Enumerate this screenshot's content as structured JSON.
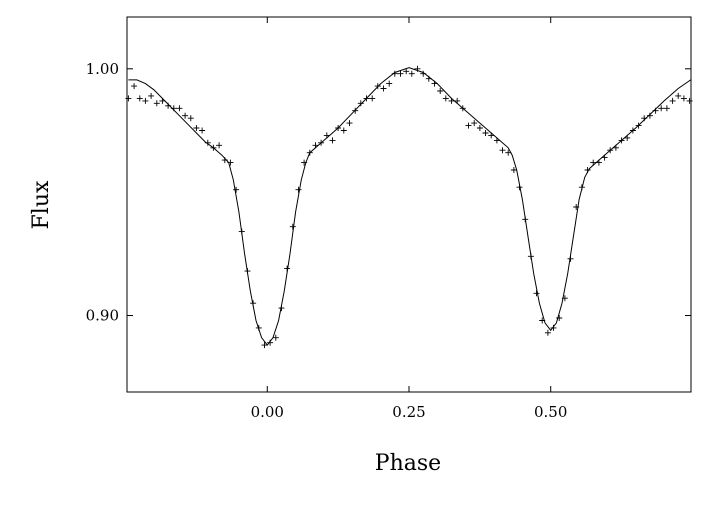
{
  "chart_data": {
    "type": "scatter",
    "xlabel": "Phase",
    "ylabel": "Flux",
    "xlim": [
      -0.2475,
      0.7475
    ],
    "ylim": [
      0.869,
      1.021
    ],
    "x_ticks": [
      {
        "value": 0.0,
        "label": "0.00"
      },
      {
        "value": 0.25,
        "label": "0.25"
      },
      {
        "value": 0.5,
        "label": "0.50"
      }
    ],
    "y_ticks": [
      {
        "value": 0.9,
        "label": "0.90"
      },
      {
        "value": 1.0,
        "label": "1.00"
      }
    ],
    "grid": false,
    "series": [
      {
        "kind": "observed-points",
        "marker": "plus",
        "points": [
          [
            -0.245,
            0.988
          ],
          [
            -0.235,
            0.993
          ],
          [
            -0.225,
            0.988
          ],
          [
            -0.215,
            0.987
          ],
          [
            -0.205,
            0.989
          ],
          [
            -0.195,
            0.986
          ],
          [
            -0.185,
            0.987
          ],
          [
            -0.175,
            0.985
          ],
          [
            -0.165,
            0.984
          ],
          [
            -0.155,
            0.984
          ],
          [
            -0.145,
            0.981
          ],
          [
            -0.135,
            0.98
          ],
          [
            -0.125,
            0.976
          ],
          [
            -0.115,
            0.975
          ],
          [
            -0.105,
            0.97
          ],
          [
            -0.095,
            0.968
          ],
          [
            -0.085,
            0.969
          ],
          [
            -0.075,
            0.963
          ],
          [
            -0.065,
            0.962
          ],
          [
            -0.055,
            0.951
          ],
          [
            -0.045,
            0.934
          ],
          [
            -0.035,
            0.918
          ],
          [
            -0.025,
            0.905
          ],
          [
            -0.015,
            0.895
          ],
          [
            -0.005,
            0.888
          ],
          [
            0.005,
            0.889
          ],
          [
            0.015,
            0.891
          ],
          [
            0.025,
            0.903
          ],
          [
            0.035,
            0.919
          ],
          [
            0.045,
            0.936
          ],
          [
            0.055,
            0.951
          ],
          [
            0.065,
            0.962
          ],
          [
            0.075,
            0.966
          ],
          [
            0.085,
            0.969
          ],
          [
            0.095,
            0.97
          ],
          [
            0.105,
            0.973
          ],
          [
            0.115,
            0.971
          ],
          [
            0.125,
            0.976
          ],
          [
            0.135,
            0.975
          ],
          [
            0.145,
            0.978
          ],
          [
            0.155,
            0.983
          ],
          [
            0.165,
            0.986
          ],
          [
            0.175,
            0.988
          ],
          [
            0.185,
            0.988
          ],
          [
            0.195,
            0.993
          ],
          [
            0.205,
            0.992
          ],
          [
            0.215,
            0.994
          ],
          [
            0.225,
            0.998
          ],
          [
            0.235,
            0.998
          ],
          [
            0.245,
            0.999
          ],
          [
            0.255,
            0.998
          ],
          [
            0.265,
            1.0
          ],
          [
            0.275,
            0.998
          ],
          [
            0.285,
            0.996
          ],
          [
            0.295,
            0.994
          ],
          [
            0.305,
            0.991
          ],
          [
            0.315,
            0.988
          ],
          [
            0.325,
            0.987
          ],
          [
            0.335,
            0.987
          ],
          [
            0.345,
            0.984
          ],
          [
            0.355,
            0.977
          ],
          [
            0.365,
            0.978
          ],
          [
            0.375,
            0.976
          ],
          [
            0.385,
            0.974
          ],
          [
            0.395,
            0.973
          ],
          [
            0.405,
            0.971
          ],
          [
            0.415,
            0.967
          ],
          [
            0.425,
            0.966
          ],
          [
            0.435,
            0.959
          ],
          [
            0.445,
            0.952
          ],
          [
            0.455,
            0.939
          ],
          [
            0.465,
            0.924
          ],
          [
            0.475,
            0.909
          ],
          [
            0.485,
            0.898
          ],
          [
            0.495,
            0.893
          ],
          [
            0.505,
            0.895
          ],
          [
            0.515,
            0.899
          ],
          [
            0.525,
            0.907
          ],
          [
            0.535,
            0.923
          ],
          [
            0.545,
            0.944
          ],
          [
            0.555,
            0.952
          ],
          [
            0.565,
            0.959
          ],
          [
            0.575,
            0.962
          ],
          [
            0.585,
            0.962
          ],
          [
            0.595,
            0.964
          ],
          [
            0.605,
            0.967
          ],
          [
            0.615,
            0.968
          ],
          [
            0.625,
            0.971
          ],
          [
            0.635,
            0.972
          ],
          [
            0.645,
            0.975
          ],
          [
            0.655,
            0.977
          ],
          [
            0.665,
            0.98
          ],
          [
            0.675,
            0.981
          ],
          [
            0.685,
            0.983
          ],
          [
            0.695,
            0.984
          ],
          [
            0.705,
            0.984
          ],
          [
            0.715,
            0.987
          ],
          [
            0.725,
            0.989
          ],
          [
            0.735,
            0.988
          ],
          [
            0.745,
            0.987
          ]
        ]
      },
      {
        "kind": "model-curve",
        "points": [
          [
            -0.245,
            0.9955
          ],
          [
            -0.23,
            0.9955
          ],
          [
            -0.215,
            0.994
          ],
          [
            -0.2,
            0.9915
          ],
          [
            -0.185,
            0.988
          ],
          [
            -0.17,
            0.9845
          ],
          [
            -0.155,
            0.981
          ],
          [
            -0.14,
            0.9775
          ],
          [
            -0.125,
            0.974
          ],
          [
            -0.11,
            0.9705
          ],
          [
            -0.095,
            0.968
          ],
          [
            -0.08,
            0.965
          ],
          [
            -0.068,
            0.962
          ],
          [
            -0.06,
            0.955
          ],
          [
            -0.05,
            0.942
          ],
          [
            -0.04,
            0.925
          ],
          [
            -0.03,
            0.91
          ],
          [
            -0.02,
            0.898
          ],
          [
            -0.01,
            0.891
          ],
          [
            0.0,
            0.888
          ],
          [
            0.01,
            0.891
          ],
          [
            0.02,
            0.898
          ],
          [
            0.03,
            0.91
          ],
          [
            0.04,
            0.925
          ],
          [
            0.05,
            0.942
          ],
          [
            0.06,
            0.955
          ],
          [
            0.068,
            0.962
          ],
          [
            0.075,
            0.966
          ],
          [
            0.1,
            0.971
          ],
          [
            0.125,
            0.976
          ],
          [
            0.15,
            0.982
          ],
          [
            0.175,
            0.988
          ],
          [
            0.2,
            0.994
          ],
          [
            0.225,
            0.9985
          ],
          [
            0.25,
            1.0005
          ],
          [
            0.275,
            0.9985
          ],
          [
            0.3,
            0.994
          ],
          [
            0.325,
            0.988
          ],
          [
            0.35,
            0.983
          ],
          [
            0.375,
            0.978
          ],
          [
            0.4,
            0.973
          ],
          [
            0.425,
            0.968
          ],
          [
            0.432,
            0.965
          ],
          [
            0.44,
            0.959
          ],
          [
            0.45,
            0.947
          ],
          [
            0.46,
            0.932
          ],
          [
            0.47,
            0.917
          ],
          [
            0.48,
            0.905
          ],
          [
            0.49,
            0.897
          ],
          [
            0.5,
            0.894
          ],
          [
            0.51,
            0.897
          ],
          [
            0.52,
            0.905
          ],
          [
            0.53,
            0.917
          ],
          [
            0.54,
            0.932
          ],
          [
            0.55,
            0.947
          ],
          [
            0.56,
            0.956
          ],
          [
            0.568,
            0.9595
          ],
          [
            0.58,
            0.962
          ],
          [
            0.6,
            0.966
          ],
          [
            0.625,
            0.971
          ],
          [
            0.65,
            0.976
          ],
          [
            0.675,
            0.9815
          ],
          [
            0.7,
            0.987
          ],
          [
            0.725,
            0.992
          ],
          [
            0.747,
            0.9955
          ]
        ]
      }
    ]
  }
}
